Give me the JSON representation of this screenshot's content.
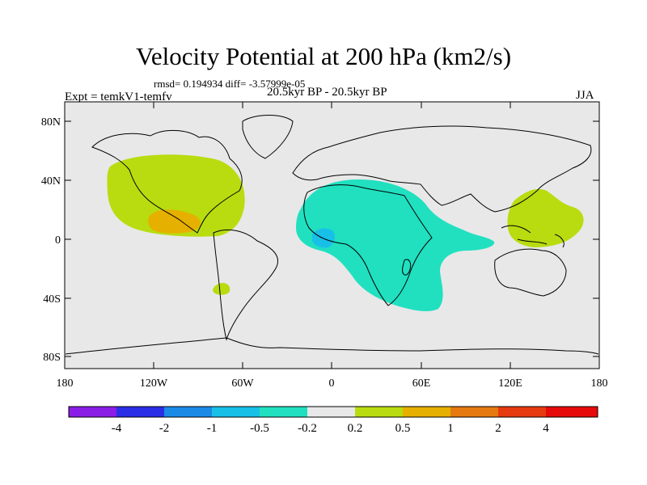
{
  "title": "Velocity Potential at 200 hPa (km2/s)",
  "stats": "rmsd= 0.194934 diff= -3.57999e-05",
  "experiment": "Expt = temkV1-temfv",
  "period": "20.5kyr BP - 20.5kyr BP",
  "season": "JJA",
  "axes": {
    "lat_ticks": [
      "80N",
      "40N",
      "0",
      "40S",
      "80S"
    ],
    "lon_ticks": [
      "180",
      "120W",
      "60W",
      "0",
      "60E",
      "120E",
      "180"
    ]
  },
  "colorbar": {
    "labels": [
      "-4",
      "-2",
      "-1",
      "-0.5",
      "-0.2",
      "0.2",
      "0.5",
      "1",
      "2",
      "4"
    ],
    "colors": [
      "#8a1ee6",
      "#2a2ee6",
      "#1a8ae6",
      "#18c0e8",
      "#20e0c0",
      "#e8e8e8",
      "#b8dc10",
      "#e6b000",
      "#e67a10",
      "#e63a10",
      "#e60a0a"
    ]
  },
  "regions": [
    {
      "name": "east-pacific-positive",
      "level": "0.2 to 0.5",
      "color": "#b8dc10"
    },
    {
      "name": "central-america-positive",
      "level": "0.5 to 1",
      "color": "#e6b000"
    },
    {
      "name": "west-pacific-positive",
      "level": "0.2 to 0.5",
      "color": "#b8dc10"
    },
    {
      "name": "south-america-positive",
      "level": "0.2 to 0.5",
      "color": "#b8dc10"
    },
    {
      "name": "africa-negative",
      "level": "-0.5 to -0.2",
      "color": "#20e0c0"
    },
    {
      "name": "gulf-of-guinea-negative",
      "level": "-1 to -0.5",
      "color": "#18c0e8"
    }
  ]
}
